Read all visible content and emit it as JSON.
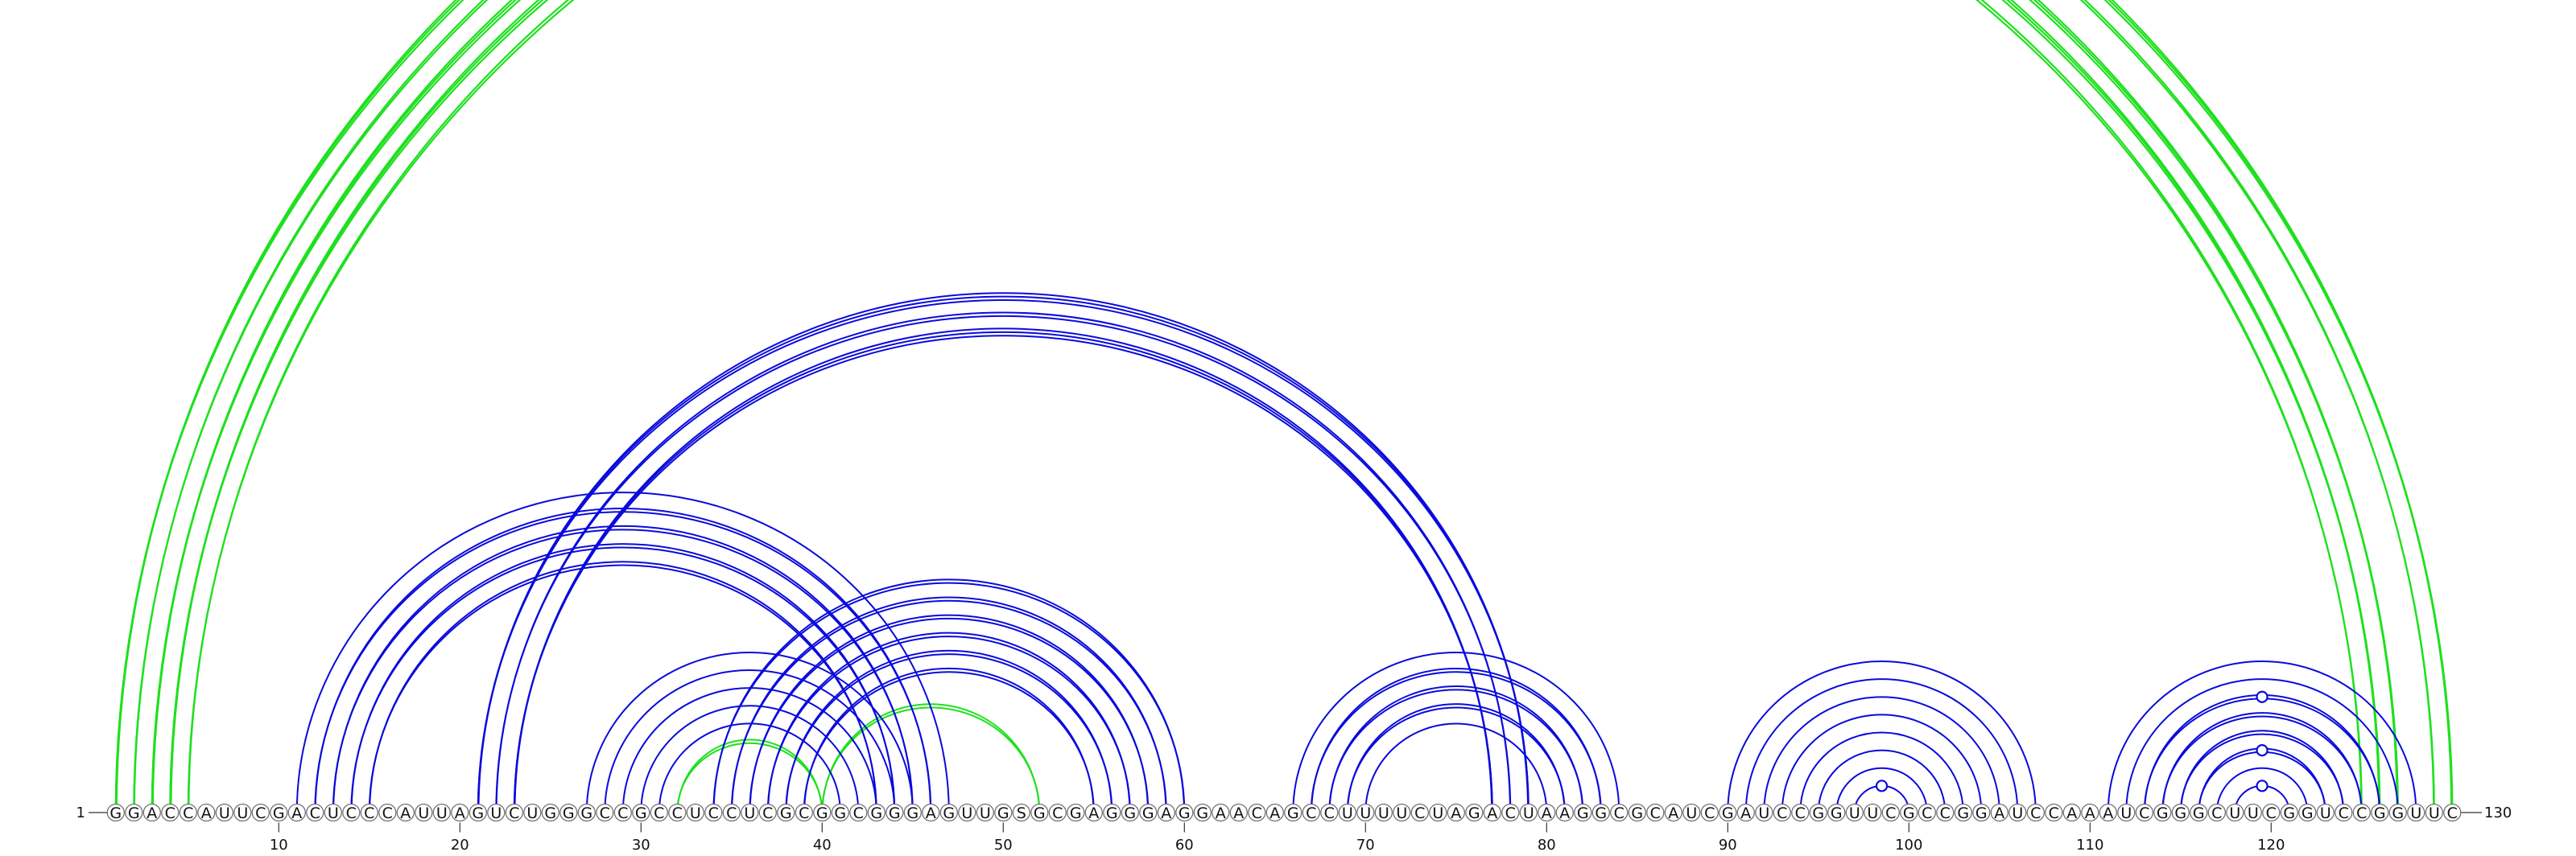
{
  "sequence": "GGACCAUUCGACUCCCAUUAGUCUGGGCCGCCUCCUCGCGGCGGGAGUUGSGCGAGGGAGGAACAGCCUUUUCUAGACUAAGGCGCAUCGAUCCGGUUCGCCGGAUCCAAAUCGGGCUUCGGUCCGGUUC",
  "start_label": "1",
  "end_label": "130",
  "tick_labels": [
    "10",
    "20",
    "30",
    "40",
    "50",
    "60",
    "70",
    "80",
    "90",
    "100",
    "110",
    "120"
  ],
  "tick_positions": [
    10,
    20,
    30,
    40,
    50,
    60,
    70,
    80,
    90,
    100,
    110,
    120
  ],
  "colors": {
    "blue": "#0a0adc",
    "green": "#1ee01e"
  },
  "pairs": {
    "green": [
      {
        "i": 1,
        "j": 130,
        "sets": 3
      },
      {
        "i": 2,
        "j": 129,
        "sets": 2
      },
      {
        "i": 3,
        "j": 127,
        "sets": 3
      },
      {
        "i": 4,
        "j": 126,
        "sets": 3
      },
      {
        "i": 5,
        "j": 125,
        "sets": 2
      },
      {
        "i": 32,
        "j": 40,
        "sets": 2
      },
      {
        "i": 40,
        "j": 52,
        "sets": 2
      }
    ],
    "blue": [
      {
        "i": 11,
        "j": 47,
        "sets": 1
      },
      {
        "i": 12,
        "j": 46,
        "sets": 2
      },
      {
        "i": 13,
        "j": 45,
        "sets": 2
      },
      {
        "i": 14,
        "j": 44,
        "sets": 2
      },
      {
        "i": 15,
        "j": 43,
        "sets": 2
      },
      {
        "i": 21,
        "j": 79,
        "sets": 3
      },
      {
        "i": 22,
        "j": 78,
        "sets": 2
      },
      {
        "i": 23,
        "j": 77,
        "sets": 3
      },
      {
        "i": 27,
        "j": 45,
        "sets": 1
      },
      {
        "i": 28,
        "j": 44,
        "sets": 1
      },
      {
        "i": 29,
        "j": 43,
        "sets": 1
      },
      {
        "i": 30,
        "j": 42,
        "sets": 1
      },
      {
        "i": 31,
        "j": 41,
        "sets": 1
      },
      {
        "i": 34,
        "j": 60,
        "sets": 2
      },
      {
        "i": 35,
        "j": 59,
        "sets": 2
      },
      {
        "i": 36,
        "j": 58,
        "sets": 2
      },
      {
        "i": 37,
        "j": 57,
        "sets": 2
      },
      {
        "i": 38,
        "j": 56,
        "sets": 2
      },
      {
        "i": 39,
        "j": 55,
        "sets": 2
      },
      {
        "i": 66,
        "j": 84,
        "sets": 1
      },
      {
        "i": 67,
        "j": 83,
        "sets": 2
      },
      {
        "i": 68,
        "j": 82,
        "sets": 2
      },
      {
        "i": 69,
        "j": 81,
        "sets": 2
      },
      {
        "i": 70,
        "j": 80,
        "sets": 1
      },
      {
        "i": 90,
        "j": 107,
        "sets": 1
      },
      {
        "i": 91,
        "j": 106,
        "sets": 1
      },
      {
        "i": 92,
        "j": 105,
        "sets": 1
      },
      {
        "i": 93,
        "j": 104,
        "sets": 1
      },
      {
        "i": 94,
        "j": 103,
        "sets": 1
      },
      {
        "i": 95,
        "j": 102,
        "sets": 1
      },
      {
        "i": 96,
        "j": 101,
        "sets": 1
      },
      {
        "i": 97,
        "j": 100,
        "sets": 1
      },
      {
        "i": 111,
        "j": 128,
        "sets": 1
      },
      {
        "i": 112,
        "j": 127,
        "sets": 1
      },
      {
        "i": 113,
        "j": 126,
        "sets": 2
      },
      {
        "i": 114,
        "j": 125,
        "sets": 2
      },
      {
        "i": 115,
        "j": 124,
        "sets": 2
      },
      {
        "i": 116,
        "j": 123,
        "sets": 2
      },
      {
        "i": 117,
        "j": 122,
        "sets": 1
      },
      {
        "i": 118,
        "j": 121,
        "sets": 1
      }
    ]
  },
  "markers": [
    {
      "i": 1,
      "j": 130,
      "color": "green"
    },
    {
      "i": 97,
      "j": 100,
      "color": "blue"
    },
    {
      "i": 118,
      "j": 121,
      "color": "blue"
    },
    {
      "i": 116,
      "j": 123,
      "color": "blue"
    },
    {
      "i": 113,
      "j": 126,
      "color": "blue"
    }
  ]
}
